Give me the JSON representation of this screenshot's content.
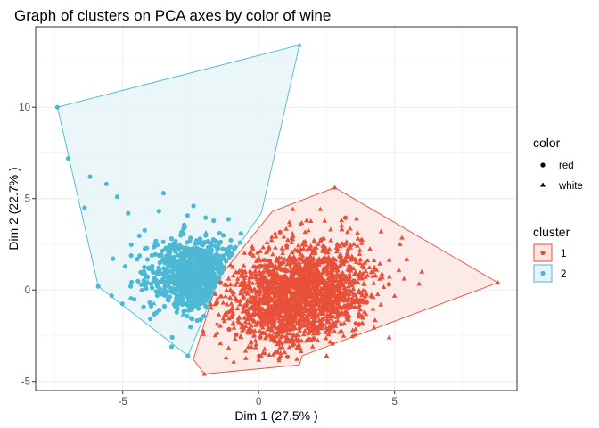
{
  "chart_data": {
    "type": "scatter",
    "title": "Graph of clusters on PCA axes by color of wine",
    "xlabel": "Dim 1 (27.5% )",
    "ylabel": "Dim 2 (22.7% )",
    "xlim": [
      -8.2,
      9.5
    ],
    "ylim": [
      -5.5,
      14.4
    ],
    "x_ticks": [
      -5,
      0,
      5
    ],
    "y_ticks": [
      -5,
      0,
      5,
      10
    ],
    "x_tick_labels": [
      "-5",
      "0",
      "5"
    ],
    "y_tick_labels": [
      "-5",
      "0",
      "5",
      "10"
    ],
    "grid": true,
    "legend_position": "right",
    "legends": [
      {
        "title": "color",
        "entries": [
          {
            "label": "red",
            "shape": "circle"
          },
          {
            "label": "white",
            "shape": "triangle"
          }
        ]
      },
      {
        "title": "cluster",
        "entries": [
          {
            "label": "1",
            "color": "#e8503a"
          },
          {
            "label": "2",
            "color": "#4db8d4"
          }
        ]
      }
    ],
    "series": [
      {
        "name": "1",
        "color": "#e8503a",
        "fill": "#fbe5e1",
        "center": [
          1.5,
          -0.3
        ],
        "spread": [
          1.35,
          1.2
        ],
        "hull": [
          [
            -2.0,
            -4.6
          ],
          [
            1.5,
            -4.1
          ],
          [
            1.6,
            -3.6
          ],
          [
            8.8,
            0.4
          ],
          [
            2.8,
            5.6
          ],
          [
            0.5,
            4.3
          ],
          [
            -1.5,
            0.6
          ],
          [
            -2.4,
            -3.8
          ]
        ],
        "outliers": [
          [
            2.8,
            5.6
          ],
          [
            8.8,
            0.4
          ],
          [
            -2.0,
            -4.6
          ],
          [
            5.2,
            2.5
          ],
          [
            6.0,
            1.0
          ],
          [
            4.8,
            -2.6
          ],
          [
            3.6,
            3.9
          ],
          [
            -1.2,
            -3.7
          ],
          [
            2.5,
            -3.6
          ],
          [
            4.5,
            3.2
          ]
        ]
      },
      {
        "name": "2",
        "color": "#4db8d4",
        "fill": "#e6f4f8",
        "center": [
          -2.2,
          0.8
        ],
        "spread": [
          0.95,
          1.0
        ],
        "hull": [
          [
            -7.4,
            10.0
          ],
          [
            1.5,
            13.4
          ],
          [
            0.1,
            4.2
          ],
          [
            -1.2,
            1.5
          ],
          [
            -2.6,
            -3.6
          ],
          [
            -5.9,
            0.2
          ]
        ],
        "outliers": [
          [
            -7.4,
            10.0
          ],
          [
            -7.0,
            7.2
          ],
          [
            1.5,
            13.4
          ],
          [
            -6.2,
            6.2
          ],
          [
            -5.6,
            5.8
          ],
          [
            -5.2,
            5.1
          ],
          [
            -5.9,
            0.2
          ],
          [
            -6.4,
            4.5
          ],
          [
            -4.8,
            4.2
          ],
          [
            -3.5,
            5.3
          ],
          [
            -2.6,
            -3.6
          ],
          [
            -3.2,
            -3.1
          ]
        ]
      }
    ]
  }
}
